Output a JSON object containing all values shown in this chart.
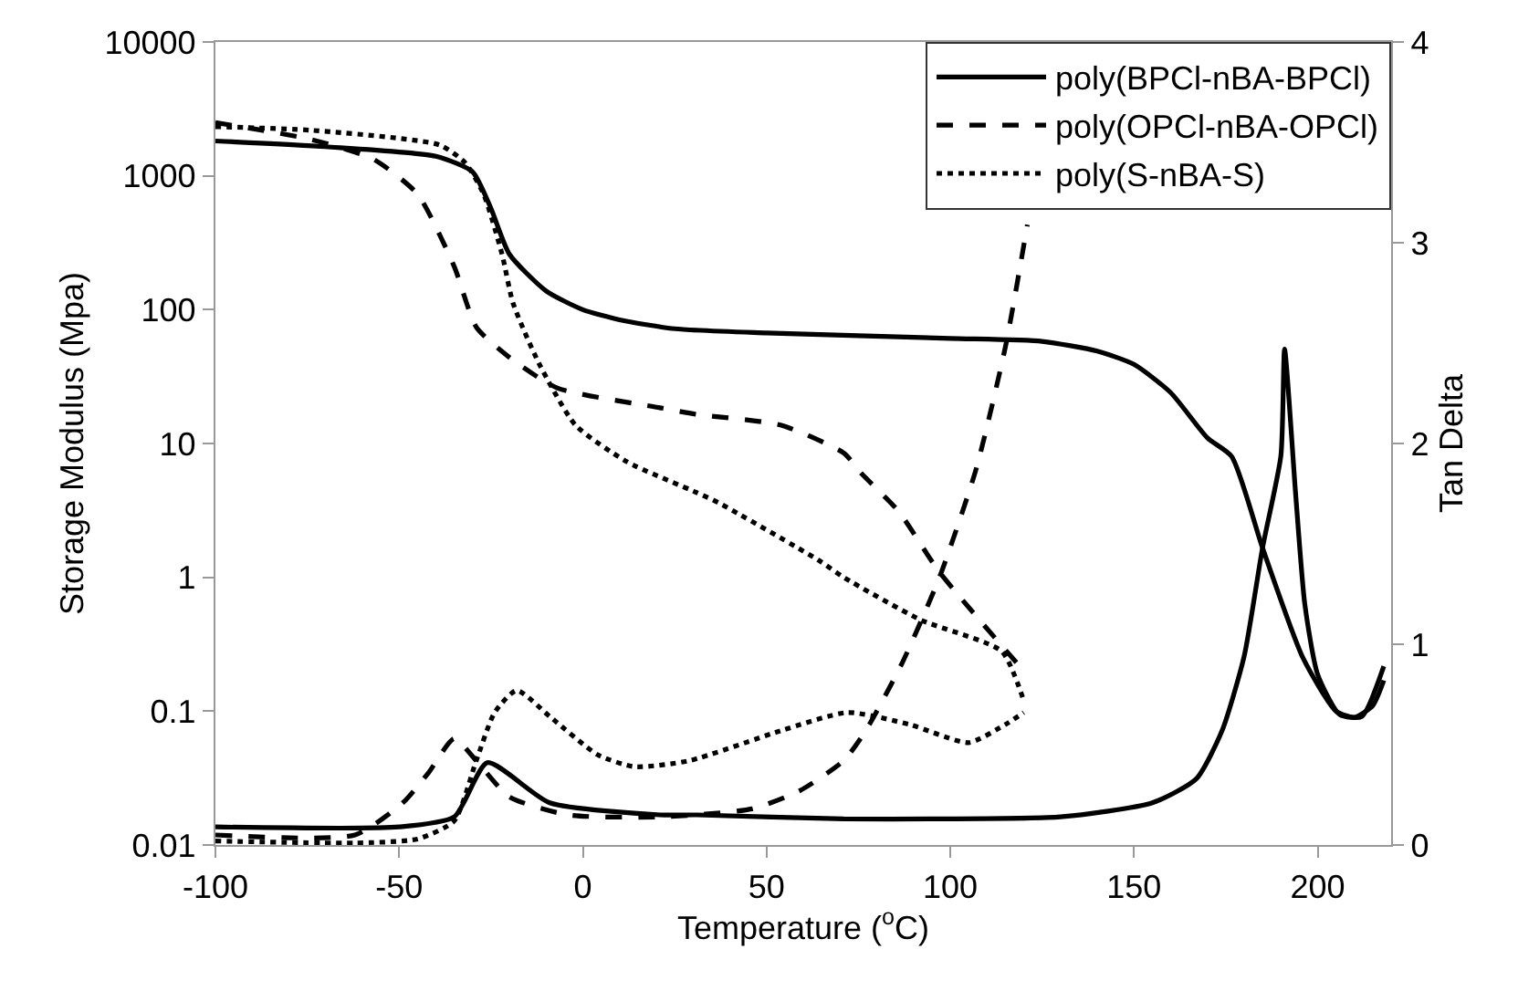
{
  "chart_data": {
    "type": "line",
    "xlabel": "Temperature ($^{o}$C)",
    "ylabel": "Storage Modulus (Mpa)",
    "y2label": "Tan Delta",
    "xlim": [
      -100,
      220
    ],
    "xticks": [
      -100,
      -50,
      0,
      50,
      100,
      150,
      200
    ],
    "ylim": [
      0.01,
      10000
    ],
    "yticks": [
      0.01,
      0.1,
      1,
      10,
      100,
      1000,
      10000
    ],
    "log": "y",
    "y2lim": [
      0,
      4
    ],
    "y2ticks": [
      0,
      1,
      2,
      3,
      4
    ],
    "legend": "top right",
    "marker": "none",
    "series": [
      {
        "name": "poly(BPCl-nBA-BPCl)",
        "color": "#000000",
        "line_style": "solid",
        "x": [
          -100,
          -70,
          -40,
          -30,
          -25,
          -20,
          -10,
          0,
          10,
          25,
          50,
          100,
          125,
          140,
          150,
          160,
          170,
          176.6,
          185,
          196,
          205,
          210,
          215,
          218
        ],
        "values": [
          1820,
          1650,
          1400,
          1070,
          570,
          260,
          138,
          100,
          84,
          72,
          67,
          61,
          58,
          49,
          39,
          24,
          11,
          8.0,
          1.66,
          0.25,
          0.1,
          0.09,
          0.11,
          0.17
        ]
      },
      {
        "name": "poly(OPCl-nBA-OPCl)",
        "color": "#000000",
        "line_style": "dashed",
        "x": [
          -100,
          -74,
          -57,
          -45,
          -35,
          -29,
          -20,
          -7,
          21,
          31,
          54,
          71,
          76,
          86,
          97,
          120
        ],
        "values": [
          2500,
          1870,
          1330,
          730,
          210,
          74,
          44,
          26,
          18.5,
          16.5,
          13.7,
          8.5,
          5.9,
          3.1,
          1.1,
          0.2
        ]
      },
      {
        "name": "poly(S-nBA-S)",
        "color": "#000000",
        "line_style": "dotted",
        "x": [
          -100,
          -74,
          -39,
          -32,
          -27,
          -22,
          -19,
          -12,
          -2,
          12,
          31,
          37,
          64,
          71,
          92,
          114,
          120
        ],
        "values": [
          2330,
          2190,
          1700,
          1250,
          730,
          260,
          112,
          40,
          13.7,
          7.3,
          4.3,
          3.6,
          1.35,
          1.0,
          0.48,
          0.28,
          0.12
        ]
      },
      {
        "color": "#000000",
        "line_style": "solid",
        "axis": "y2",
        "x": [
          -100,
          -50,
          -35,
          -26,
          -9,
          21,
          31,
          71,
          97,
          130,
          155,
          167,
          174,
          180,
          185,
          190,
          191,
          194,
          196.5,
          200,
          206,
          212,
          218
        ],
        "values": [
          0.09,
          0.09,
          0.14,
          0.41,
          0.21,
          0.15,
          0.15,
          0.13,
          0.13,
          0.14,
          0.21,
          0.33,
          0.57,
          0.94,
          1.48,
          1.94,
          2.47,
          1.75,
          1.2,
          0.85,
          0.65,
          0.64,
          0.89
        ]
      },
      {
        "color": "#000000",
        "line_style": "dashed",
        "axis": "y2",
        "x": [
          -100,
          -62,
          -49,
          -42,
          -35,
          -29,
          -20,
          -4,
          21,
          46,
          59,
          71,
          77,
          87,
          97,
          107,
          115,
          121
        ],
        "values": [
          0.05,
          0.05,
          0.21,
          0.36,
          0.53,
          0.42,
          0.24,
          0.15,
          0.14,
          0.18,
          0.27,
          0.42,
          0.57,
          0.91,
          1.33,
          1.87,
          2.48,
          3.09
        ]
      },
      {
        "color": "#000000",
        "line_style": "dotted",
        "axis": "y2",
        "x": [
          -100,
          -62,
          -45,
          -35,
          -29,
          -24,
          -18,
          -9,
          4,
          14,
          29,
          54,
          72,
          89,
          105,
          115,
          120
        ],
        "values": [
          0.02,
          0.01,
          0.03,
          0.12,
          0.42,
          0.66,
          0.77,
          0.64,
          0.45,
          0.39,
          0.42,
          0.57,
          0.66,
          0.6,
          0.51,
          0.6,
          0.66
        ]
      }
    ]
  }
}
